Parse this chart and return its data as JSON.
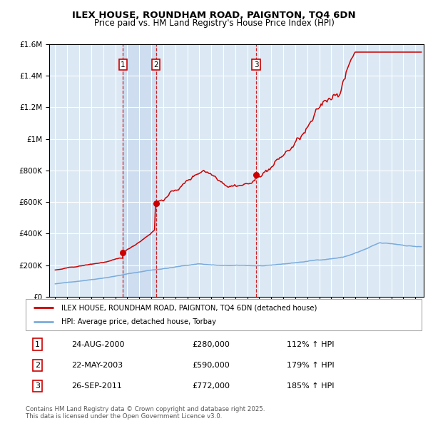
{
  "title": "ILEX HOUSE, ROUNDHAM ROAD, PAIGNTON, TQ4 6DN",
  "subtitle": "Price paid vs. HM Land Registry's House Price Index (HPI)",
  "legend_line1": "ILEX HOUSE, ROUNDHAM ROAD, PAIGNTON, TQ4 6DN (detached house)",
  "legend_line2": "HPI: Average price, detached house, Torbay",
  "transactions": [
    {
      "num": 1,
      "date": "24-AUG-2000",
      "price": 280000,
      "pct": "112%",
      "dir": "↑"
    },
    {
      "num": 2,
      "date": "22-MAY-2003",
      "price": 590000,
      "pct": "179%",
      "dir": "↑"
    },
    {
      "num": 3,
      "date": "26-SEP-2011",
      "price": 772000,
      "pct": "185%",
      "dir": "↑"
    }
  ],
  "transaction_years": [
    2000.646,
    2003.388,
    2011.738
  ],
  "transaction_prices": [
    280000,
    590000,
    772000
  ],
  "footnote1": "Contains HM Land Registry data © Crown copyright and database right 2025.",
  "footnote2": "This data is licensed under the Open Government Licence v3.0.",
  "ylim": [
    0,
    1600000
  ],
  "yticks": [
    0,
    200000,
    400000,
    600000,
    800000,
    1000000,
    1200000,
    1400000,
    1600000
  ],
  "xlim_start": 1994.5,
  "xlim_end": 2025.7,
  "bg_color": "#dce9f5",
  "fig_bg": "#ffffff",
  "grid_color": "#ffffff",
  "red_line_color": "#cc0000",
  "blue_line_color": "#7aabdb",
  "shade_color": "#c5d8ee",
  "title_fontsize": 9.5,
  "subtitle_fontsize": 8.5
}
